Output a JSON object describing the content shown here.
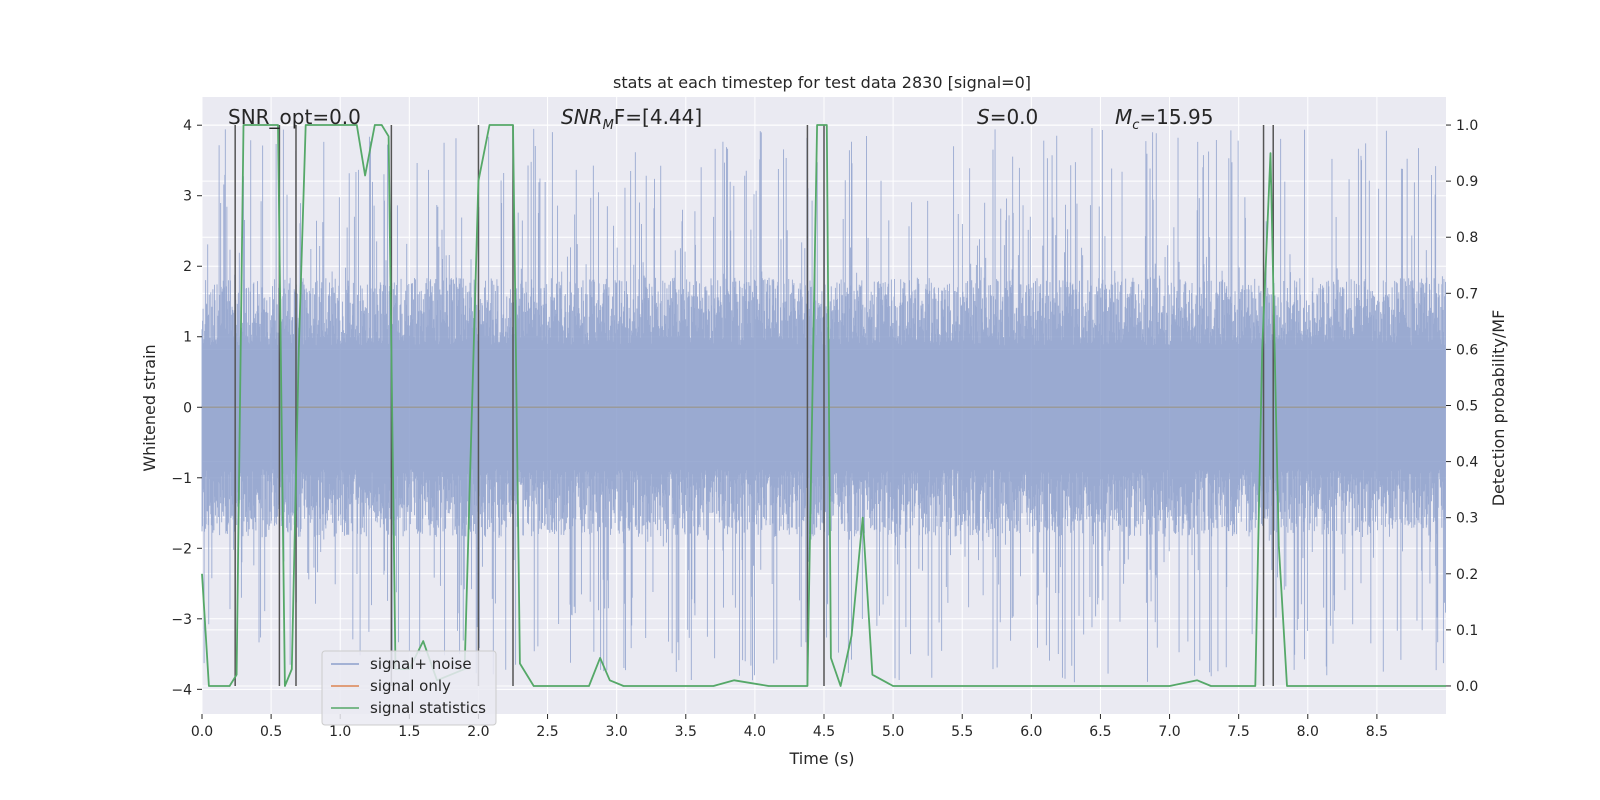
{
  "chart_data": {
    "type": "line",
    "title": "stats at each timestep for test data 2830 [signal=0]",
    "xlabel": "Time (s)",
    "ylabel": "Whitened strain",
    "y2label": "Detection probability/MF",
    "xlim": [
      0.0,
      9.0
    ],
    "ylim": [
      -4.35,
      4.4
    ],
    "y2lim": [
      -0.05,
      1.05
    ],
    "x_ticks": [
      0.0,
      0.5,
      1.0,
      1.5,
      2.0,
      2.5,
      3.0,
      3.5,
      4.0,
      4.5,
      5.0,
      5.5,
      6.0,
      6.5,
      7.0,
      7.5,
      8.0,
      8.5
    ],
    "x_tick_labels": [
      "0.0",
      "0.5",
      "1.0",
      "1.5",
      "2.0",
      "2.5",
      "3.0",
      "3.5",
      "4.0",
      "4.5",
      "5.0",
      "5.5",
      "6.0",
      "6.5",
      "7.0",
      "7.5",
      "8.0",
      "8.5"
    ],
    "y_ticks": [
      4,
      3,
      2,
      1,
      0,
      -1,
      -2,
      -3,
      -4
    ],
    "y_tick_labels": [
      "4",
      "3",
      "2",
      "1",
      "0",
      "−1",
      "−2",
      "−3",
      "−4"
    ],
    "y2_ticks": [
      1.0,
      0.9,
      0.8,
      0.7,
      0.6,
      0.5,
      0.4,
      0.3,
      0.2,
      0.1,
      0.0
    ],
    "y2_tick_labels": [
      "1.0",
      "0.9",
      "0.8",
      "0.7",
      "0.6",
      "0.5",
      "0.4",
      "0.3",
      "0.2",
      "0.1",
      "0.0"
    ],
    "grid": true,
    "legend_position": "lower-left",
    "annotations": {
      "snr_opt": "SNR_opt=0.0",
      "snr_mf_base": "SNR",
      "snr_mf_sub": "M",
      "snr_mf_rest": "F=[4.44]",
      "s_base": "S",
      "s_rest": "=0.0",
      "mc_base": "M",
      "mc_sub": "c",
      "mc_rest": "=15.95"
    },
    "series": [
      {
        "name": "signal+ noise",
        "color": "#8c9fcb",
        "kind": "noise band",
        "typical_envelope": [
          -1.6,
          1.6
        ],
        "peak_range": [
          -3.9,
          4.0
        ]
      },
      {
        "name": "signal only",
        "color": "#dd8452",
        "constant_value": 0.0
      },
      {
        "name": "signal statistics",
        "color": "#55a868",
        "x": [
          0.0,
          0.05,
          0.1,
          0.2,
          0.25,
          0.3,
          0.4,
          0.55,
          0.6,
          0.65,
          0.7,
          0.75,
          1.0,
          1.12,
          1.18,
          1.25,
          1.3,
          1.35,
          1.4,
          1.5,
          1.6,
          1.7,
          1.8,
          1.9,
          2.0,
          2.08,
          2.15,
          2.25,
          2.3,
          2.4,
          2.6,
          2.8,
          2.88,
          2.95,
          3.05,
          3.3,
          3.7,
          3.85,
          4.1,
          4.38,
          4.45,
          4.52,
          4.55,
          4.62,
          4.7,
          4.78,
          4.85,
          5.0,
          5.5,
          6.0,
          6.5,
          7.0,
          7.2,
          7.3,
          7.5,
          7.62,
          7.67,
          7.73,
          7.79,
          7.85,
          8.0,
          8.5,
          9.0
        ],
        "y": [
          0.2,
          0.0,
          0.0,
          0.0,
          0.02,
          1.0,
          1.0,
          1.0,
          0.0,
          0.03,
          0.6,
          1.0,
          1.0,
          1.0,
          0.91,
          1.0,
          1.0,
          0.98,
          0.03,
          0.03,
          0.08,
          0.01,
          0.02,
          0.03,
          0.9,
          1.0,
          1.0,
          1.0,
          0.04,
          0.0,
          0.0,
          0.0,
          0.05,
          0.01,
          0.0,
          0.0,
          0.0,
          0.01,
          0.0,
          0.0,
          1.0,
          1.0,
          0.05,
          0.0,
          0.09,
          0.3,
          0.02,
          0.0,
          0.0,
          0.0,
          0.0,
          0.0,
          0.01,
          0.0,
          0.0,
          0.0,
          0.6,
          0.95,
          0.25,
          0.0,
          0.0,
          0.0,
          0.0
        ]
      }
    ],
    "vertical_markers": [
      0.24,
      0.56,
      0.68,
      1.37,
      2.0,
      2.25,
      4.38,
      4.5,
      7.68,
      7.75
    ]
  }
}
